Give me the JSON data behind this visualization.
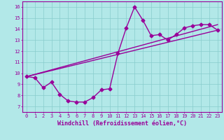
{
  "xlabel": "Windchill (Refroidissement éolien,°C)",
  "bg_color": "#b2e8e8",
  "grid_color": "#88cccc",
  "line_color": "#990099",
  "x_ticks": [
    0,
    1,
    2,
    3,
    4,
    5,
    6,
    7,
    8,
    9,
    10,
    11,
    12,
    13,
    14,
    15,
    16,
    17,
    18,
    19,
    20,
    21,
    22,
    23
  ],
  "y_ticks": [
    7,
    8,
    9,
    10,
    11,
    12,
    13,
    14,
    15,
    16
  ],
  "xlim": [
    -0.5,
    23.5
  ],
  "ylim": [
    6.5,
    16.5
  ],
  "curve1_x": [
    0,
    1,
    2,
    3,
    4,
    5,
    6,
    7,
    8,
    9,
    10,
    11,
    12,
    13,
    14,
    15,
    16,
    17,
    18,
    19,
    20,
    21,
    22,
    23
  ],
  "curve1_y": [
    9.7,
    9.6,
    8.7,
    9.2,
    8.1,
    7.5,
    7.4,
    7.4,
    7.8,
    8.5,
    8.6,
    11.8,
    14.1,
    16.0,
    14.8,
    13.4,
    13.5,
    13.0,
    13.5,
    14.1,
    14.3,
    14.4,
    14.4,
    13.9
  ],
  "curve2_x": [
    0,
    23
  ],
  "curve2_y": [
    9.7,
    13.9
  ],
  "curve3_x": [
    0,
    23
  ],
  "curve3_y": [
    9.7,
    14.4
  ],
  "font_color": "#990099",
  "marker": "D",
  "markersize": 2.5,
  "linewidth": 1.0,
  "tick_fontsize": 5.0,
  "xlabel_fontsize": 6.0
}
